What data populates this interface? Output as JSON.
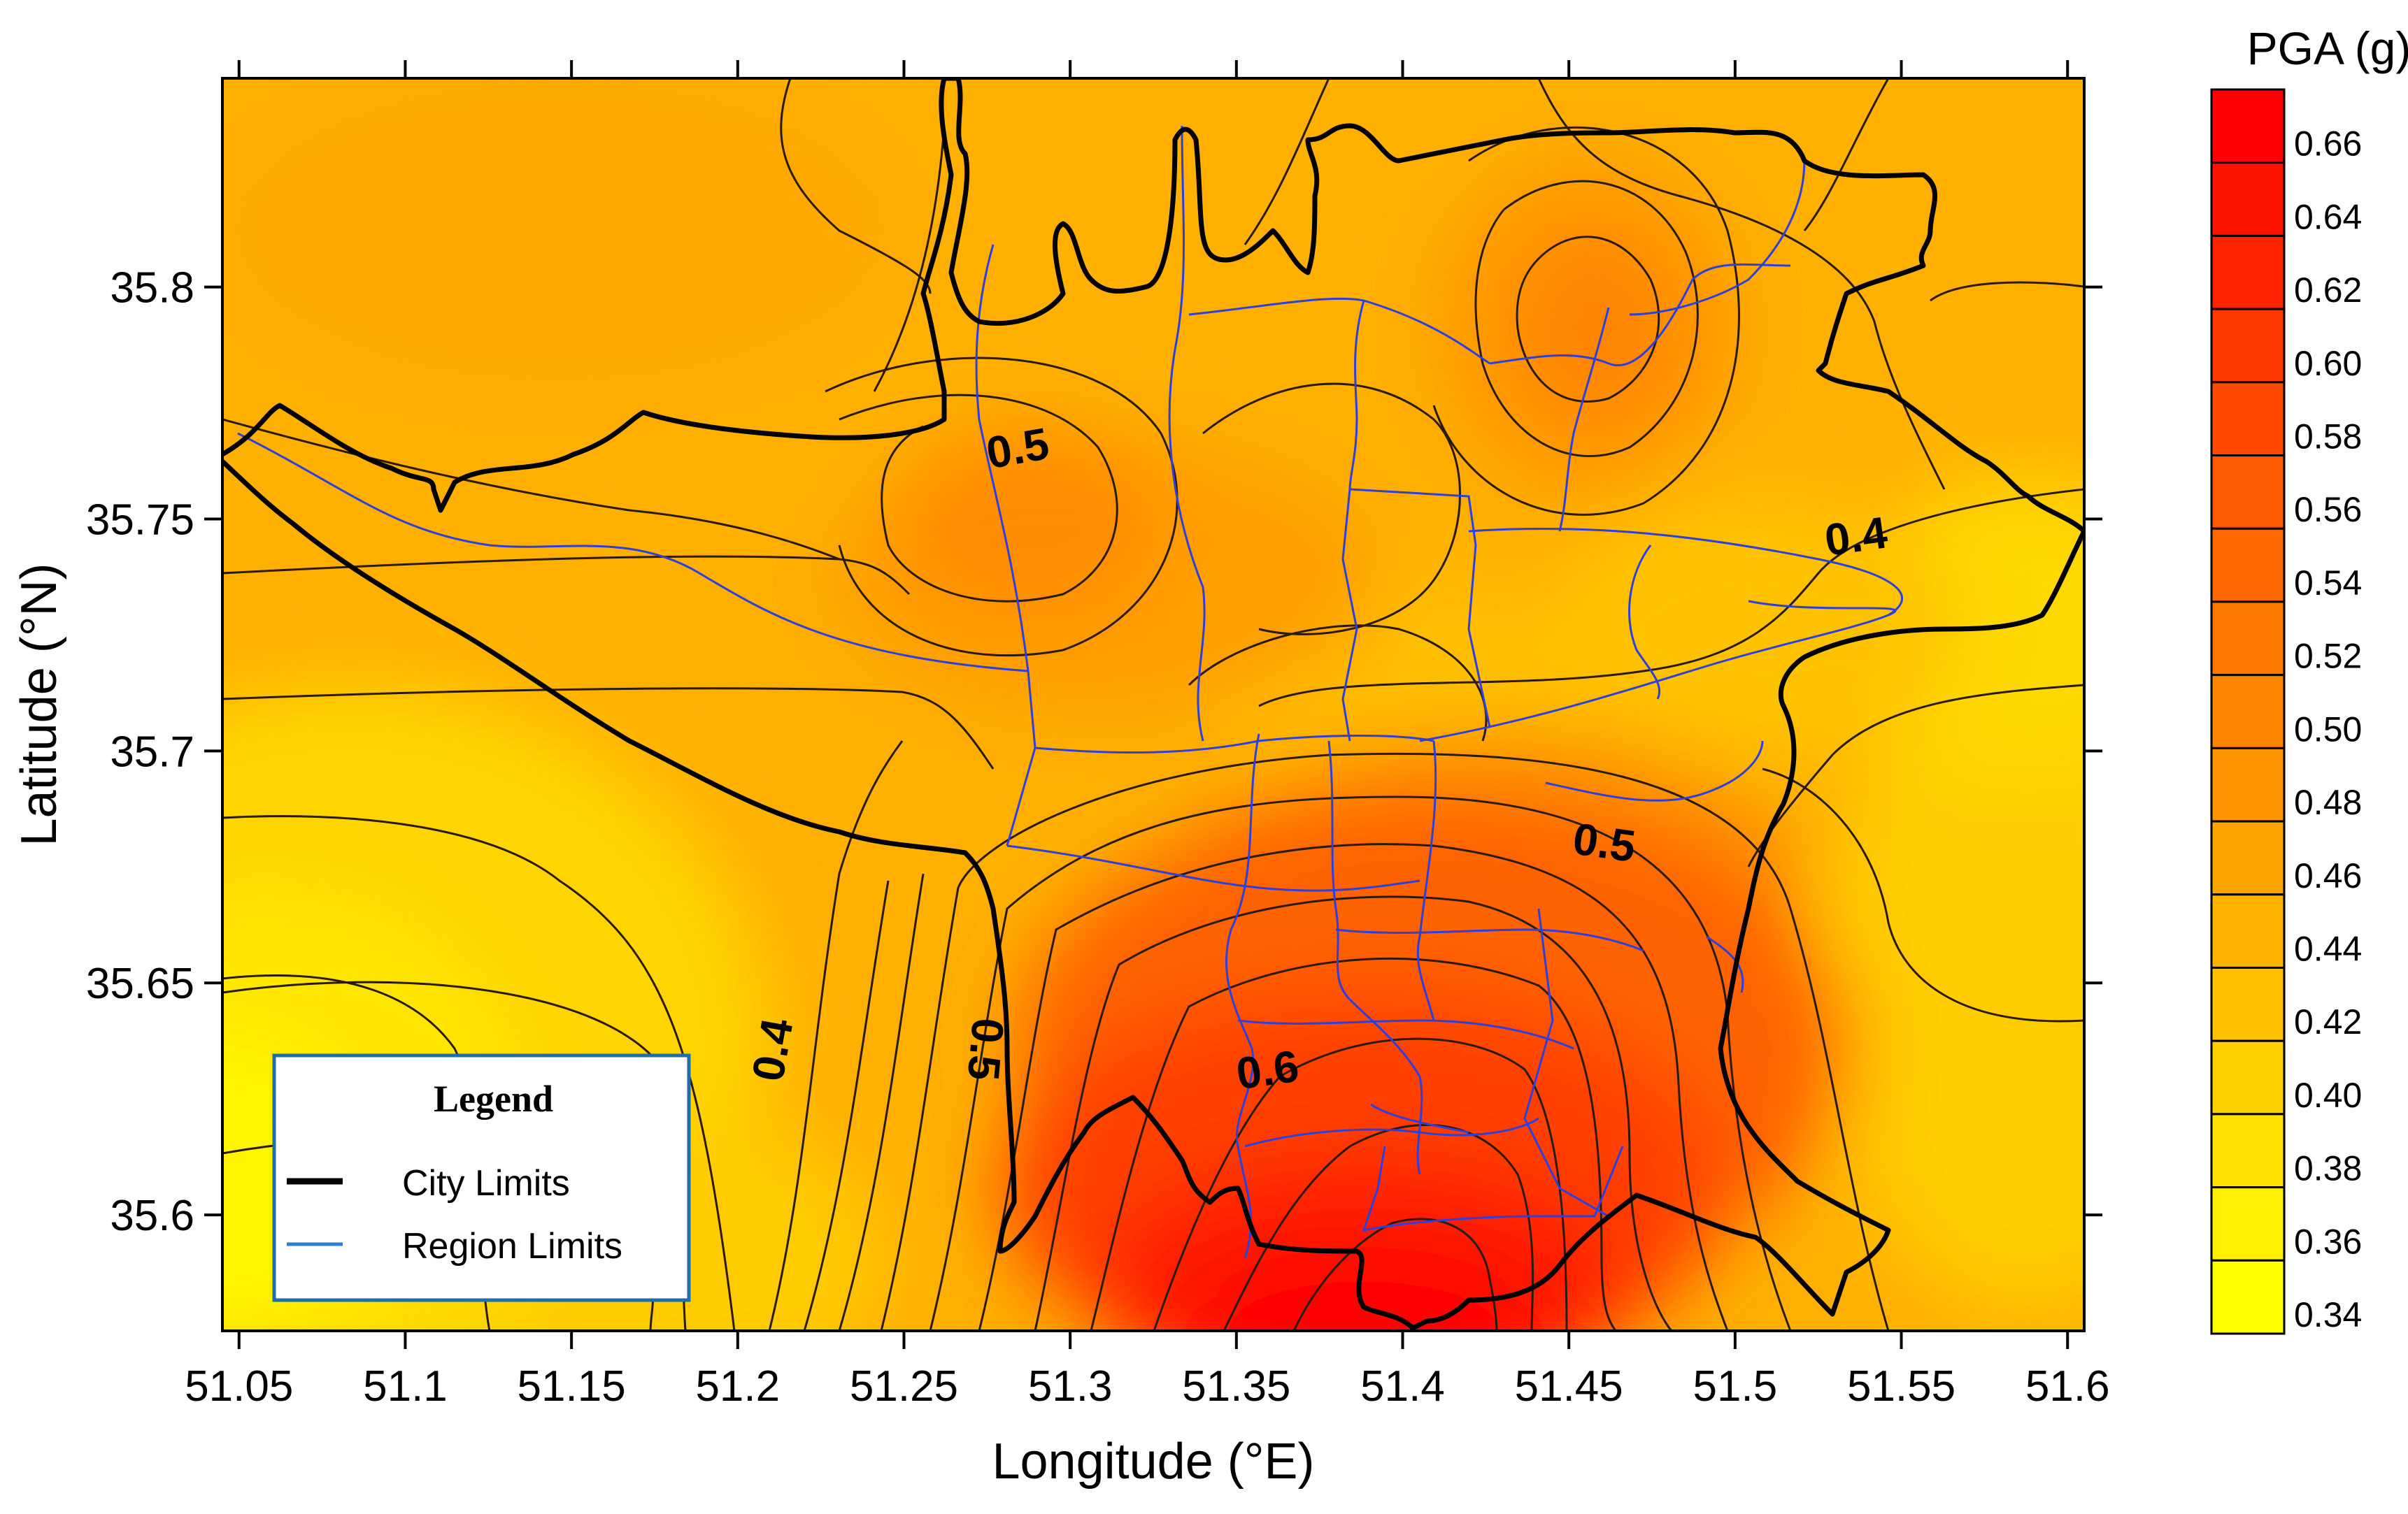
{
  "map": {
    "x_axis": {
      "label": "Longitude (°E)",
      "ticks": [
        "51.05",
        "51.1",
        "51.15",
        "51.2",
        "51.25",
        "51.3",
        "51.35",
        "51.4",
        "51.45",
        "51.5",
        "51.55",
        "51.6"
      ],
      "range": [
        51.045,
        51.605
      ]
    },
    "y_axis": {
      "label": "Latitude (°N)",
      "ticks": [
        "35.6",
        "35.65",
        "35.7",
        "35.75",
        "35.8"
      ],
      "range": [
        35.575,
        35.845
      ]
    },
    "contour_labels": [
      {
        "text": "0.5",
        "lon": 51.285,
        "lat": 35.762,
        "rotate": -10
      },
      {
        "text": "0.4",
        "lon": 51.537,
        "lat": 35.743,
        "rotate": -8
      },
      {
        "text": "0.5",
        "lon": 51.46,
        "lat": 35.677,
        "rotate": 8
      },
      {
        "text": "0.4",
        "lon": 51.215,
        "lat": 35.635,
        "rotate": -80
      },
      {
        "text": "0.5",
        "lon": 51.27,
        "lat": 35.636,
        "rotate": 95
      },
      {
        "text": "0.6",
        "lon": 51.36,
        "lat": 35.628,
        "rotate": -8
      }
    ],
    "peaks": [
      {
        "lon": 51.41,
        "lat": 35.574,
        "pga": 0.67
      },
      {
        "lon": 51.46,
        "lat": 35.79,
        "pga": 0.5
      },
      {
        "lon": 51.285,
        "lat": 35.75,
        "pga": 0.5
      },
      {
        "lon": 51.05,
        "lat": 35.6,
        "pga": 0.34
      }
    ],
    "legend": {
      "title": "Legend",
      "items": [
        {
          "label": "City Limits",
          "color": "#000000"
        },
        {
          "label": "Region Limits",
          "color": "#2f7fd0"
        }
      ]
    }
  },
  "colorbar": {
    "title": "PGA (g)",
    "levels": [
      "0.66",
      "0.64",
      "0.62",
      "0.60",
      "0.58",
      "0.56",
      "0.54",
      "0.52",
      "0.50",
      "0.48",
      "0.46",
      "0.44",
      "0.42",
      "0.40",
      "0.38",
      "0.36",
      "0.34"
    ],
    "colors": [
      "#ff0000",
      "#ff1200",
      "#ff2400",
      "#ff3600",
      "#ff4800",
      "#ff5a00",
      "#ff6700",
      "#ff7800",
      "#ff8500",
      "#ff9500",
      "#ffa300",
      "#ffb300",
      "#ffc100",
      "#ffd000",
      "#ffe000",
      "#ffef00",
      "#ffff00"
    ]
  }
}
